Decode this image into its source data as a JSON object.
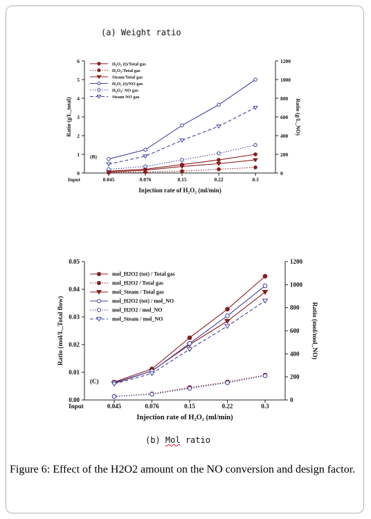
{
  "page": {
    "subtitle_a": "(a) Weight ratio",
    "subtitle_b_prefix": "(b) ",
    "subtitle_b_word": "Mol",
    "subtitle_b_suffix": " ratio",
    "caption_label": "Figure 6:",
    "caption_text": " Effect of the H2O2 amount on the NO conversion and design factor."
  },
  "chart_data": [
    {
      "type": "line",
      "panel_label": "(B)",
      "categories": [
        "Input",
        "0.045",
        "0.076",
        "0.15",
        "0.22",
        "0.3"
      ],
      "xlabel": "Injection rate of H₂O₂ (ml/min)",
      "ylabel_left": "Ratio (g/L_total)",
      "ylabel_right": "Ratio (g/L_NO)",
      "ylim_left": [
        0,
        6
      ],
      "yticks_left": [
        "0",
        "1",
        "2",
        "3",
        "4",
        "5",
        "6"
      ],
      "ylim_right": [
        0,
        1200
      ],
      "yticks_right": [
        "0",
        "200",
        "400",
        "600",
        "800",
        "1000",
        "1200"
      ],
      "legend_position": "top-left",
      "series": [
        {
          "name": "H₂O₂ (t)/Total gas",
          "axis": "left",
          "color": "#8b1a1a",
          "marker": "circle-filled",
          "dash": "solid",
          "x": [
            "0.045",
            "0.076",
            "0.15",
            "0.22",
            "0.3"
          ],
          "values": [
            0.1,
            0.2,
            0.45,
            0.7,
            1.0
          ]
        },
        {
          "name": "H₂O₂/Total gas",
          "axis": "left",
          "color": "#8b1a1a",
          "marker": "circle-filled",
          "dash": "dotted",
          "x": [
            "0.045",
            "0.076",
            "0.15",
            "0.22",
            "0.3"
          ],
          "values": [
            0.02,
            0.05,
            0.1,
            0.2,
            0.3
          ]
        },
        {
          "name": "Steam/Total gas",
          "axis": "left",
          "color": "#8b1a1a",
          "marker": "triangle-down-filled",
          "dash": "solid",
          "x": [
            "0.045",
            "0.076",
            "0.15",
            "0.22",
            "0.3"
          ],
          "values": [
            0.05,
            0.15,
            0.35,
            0.5,
            0.7
          ]
        },
        {
          "name": "H₂O₂ (t)/NO gas",
          "axis": "right",
          "color": "#3b3f9e",
          "marker": "circle-open",
          "dash": "solid",
          "x": [
            "0.045",
            "0.076",
            "0.15",
            "0.22",
            "0.3"
          ],
          "values": [
            150,
            250,
            510,
            730,
            1000
          ]
        },
        {
          "name": "H₂O₂/ NO gas",
          "axis": "right",
          "color": "#3b3f9e",
          "marker": "circle-open",
          "dash": "dotted",
          "x": [
            "0.045",
            "0.076",
            "0.15",
            "0.22",
            "0.3"
          ],
          "values": [
            40,
            70,
            140,
            210,
            300
          ]
        },
        {
          "name": "Steam NO gas",
          "axis": "right",
          "color": "#3b3f9e",
          "marker": "triangle-down-open",
          "dash": "dashed",
          "x": [
            "0.045",
            "0.076",
            "0.15",
            "0.22",
            "0.3"
          ],
          "values": [
            95,
            180,
            350,
            500,
            700
          ]
        }
      ]
    },
    {
      "type": "line",
      "panel_label": "(C)",
      "categories": [
        "Input",
        "0.045",
        "0.076",
        "0.15",
        "0.22",
        "0.3"
      ],
      "xlabel": "Injection rate of H₂O₂ (ml/min)",
      "ylabel_left": "Ratio (mol/L_Total flow)",
      "ylabel_right": "Ratio (mol/mol_NO)",
      "ylim_left": [
        0,
        0.05
      ],
      "yticks_left": [
        "0.00",
        "0.01",
        "0.02",
        "0.03",
        "0.04",
        "0.05"
      ],
      "ylim_right": [
        0,
        1200
      ],
      "yticks_right": [
        "0",
        "200",
        "400",
        "600",
        "800",
        "1000",
        "1200"
      ],
      "legend_position": "top-left",
      "series": [
        {
          "name": "mol_H2O2 (tot) / Total gas",
          "axis": "left",
          "color": "#8b1a1a",
          "marker": "circle-filled",
          "dash": "solid",
          "x": [
            "0.045",
            "0.076",
            "0.15",
            "0.22",
            "0.3"
          ],
          "values": [
            0.0065,
            0.0112,
            0.0225,
            0.0328,
            0.0447
          ]
        },
        {
          "name": "mol_H2O2 / Total gas",
          "axis": "left",
          "color": "#8b1a1a",
          "marker": "circle-filled",
          "dash": "dotted",
          "x": [
            "0.045",
            "0.076",
            "0.15",
            "0.22",
            "0.3"
          ],
          "values": [
            0.0013,
            0.0022,
            0.0045,
            0.0065,
            0.009
          ]
        },
        {
          "name": "mol_Steam / Total gas",
          "axis": "left",
          "color": "#8b1a1a",
          "marker": "triangle-down-filled",
          "dash": "solid",
          "x": [
            "0.045",
            "0.076",
            "0.15",
            "0.22",
            "0.3"
          ],
          "values": [
            0.006,
            0.0105,
            0.02,
            0.0285,
            0.039
          ]
        },
        {
          "name": "mol_H2O2 (tot) / mol_NO",
          "axis": "right",
          "color": "#3b3f9e",
          "marker": "circle-open",
          "dash": "solid",
          "x": [
            "0.045",
            "0.076",
            "0.15",
            "0.22",
            "0.3"
          ],
          "values": [
            150,
            250,
            490,
            730,
            990
          ]
        },
        {
          "name": "mol_H2O2 / mol_NO",
          "axis": "right",
          "color": "#3b3f9e",
          "marker": "circle-open",
          "dash": "dotted",
          "x": [
            "0.045",
            "0.076",
            "0.15",
            "0.22",
            "0.3"
          ],
          "values": [
            30,
            50,
            100,
            150,
            210
          ]
        },
        {
          "name": "mol_Steam / mol_NO",
          "axis": "right",
          "color": "#3b3f9e",
          "marker": "triangle-down-open",
          "dash": "dashed",
          "x": [
            "0.045",
            "0.076",
            "0.15",
            "0.22",
            "0.3"
          ],
          "values": [
            140,
            230,
            440,
            640,
            860
          ]
        }
      ]
    }
  ]
}
